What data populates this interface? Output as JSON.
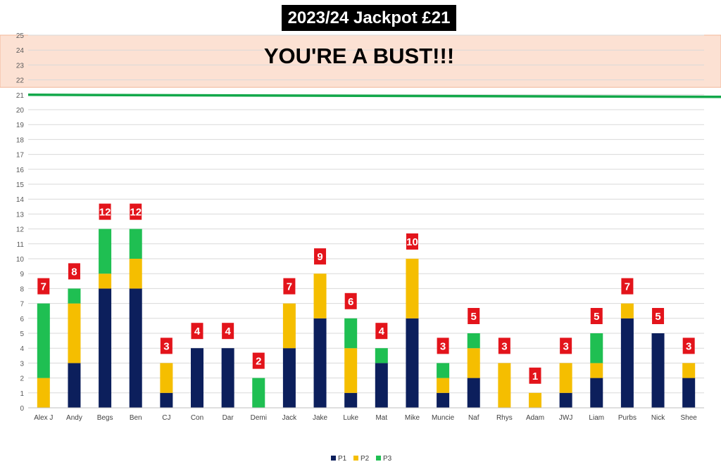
{
  "chart_data": {
    "type": "bar",
    "stacked": true,
    "title": "2023/24 Jackpot £21",
    "bust_banner": "YOU'RE A BUST!!!",
    "target_line_value": 21,
    "bust_band": [
      21.5,
      25
    ],
    "ylim": [
      0,
      25
    ],
    "yticks": [
      0,
      1,
      2,
      3,
      4,
      5,
      6,
      7,
      8,
      9,
      10,
      11,
      12,
      13,
      14,
      15,
      16,
      17,
      18,
      19,
      20,
      21,
      22,
      23,
      24,
      25
    ],
    "grid": true,
    "legend_position": "bottom",
    "categories": [
      "Alex J",
      "Andy",
      "Begs",
      "Ben",
      "CJ",
      "Con",
      "Dar",
      "Demi",
      "Jack",
      "Jake",
      "Luke",
      "Mat",
      "Mike",
      "Muncie",
      "Naf",
      "Rhys",
      "Adam",
      "JWJ",
      "Liam",
      "Purbs",
      "Nick",
      "Shee"
    ],
    "series": [
      {
        "name": "P1",
        "color": "#0c1f5c",
        "values": [
          0,
          3,
          8,
          8,
          1,
          4,
          4,
          0,
          4,
          6,
          1,
          3,
          6,
          1,
          2,
          0,
          0,
          1,
          2,
          6,
          5,
          2
        ]
      },
      {
        "name": "P2",
        "color": "#f5be00",
        "values": [
          2,
          4,
          1,
          2,
          2,
          0,
          0,
          0,
          3,
          3,
          3,
          0,
          4,
          1,
          2,
          3,
          1,
          2,
          1,
          1,
          0,
          1
        ]
      },
      {
        "name": "P3",
        "color": "#1fbf52",
        "values": [
          5,
          1,
          3,
          2,
          0,
          0,
          0,
          2,
          0,
          0,
          2,
          1,
          0,
          1,
          1,
          0,
          0,
          0,
          2,
          0,
          0,
          0
        ]
      }
    ],
    "totals": [
      "7",
      "8",
      "12",
      "12",
      "3",
      "4",
      "4",
      "2",
      "7",
      "9",
      "6",
      "4",
      "10",
      "3",
      "5",
      "3",
      "1",
      "3",
      "5",
      "7",
      "5",
      "3"
    ],
    "colors": {
      "band": "#fce1d3",
      "target_line": "#12a84a",
      "total_label_bg": "#e3141b",
      "grid": "#d9d9d9"
    }
  }
}
